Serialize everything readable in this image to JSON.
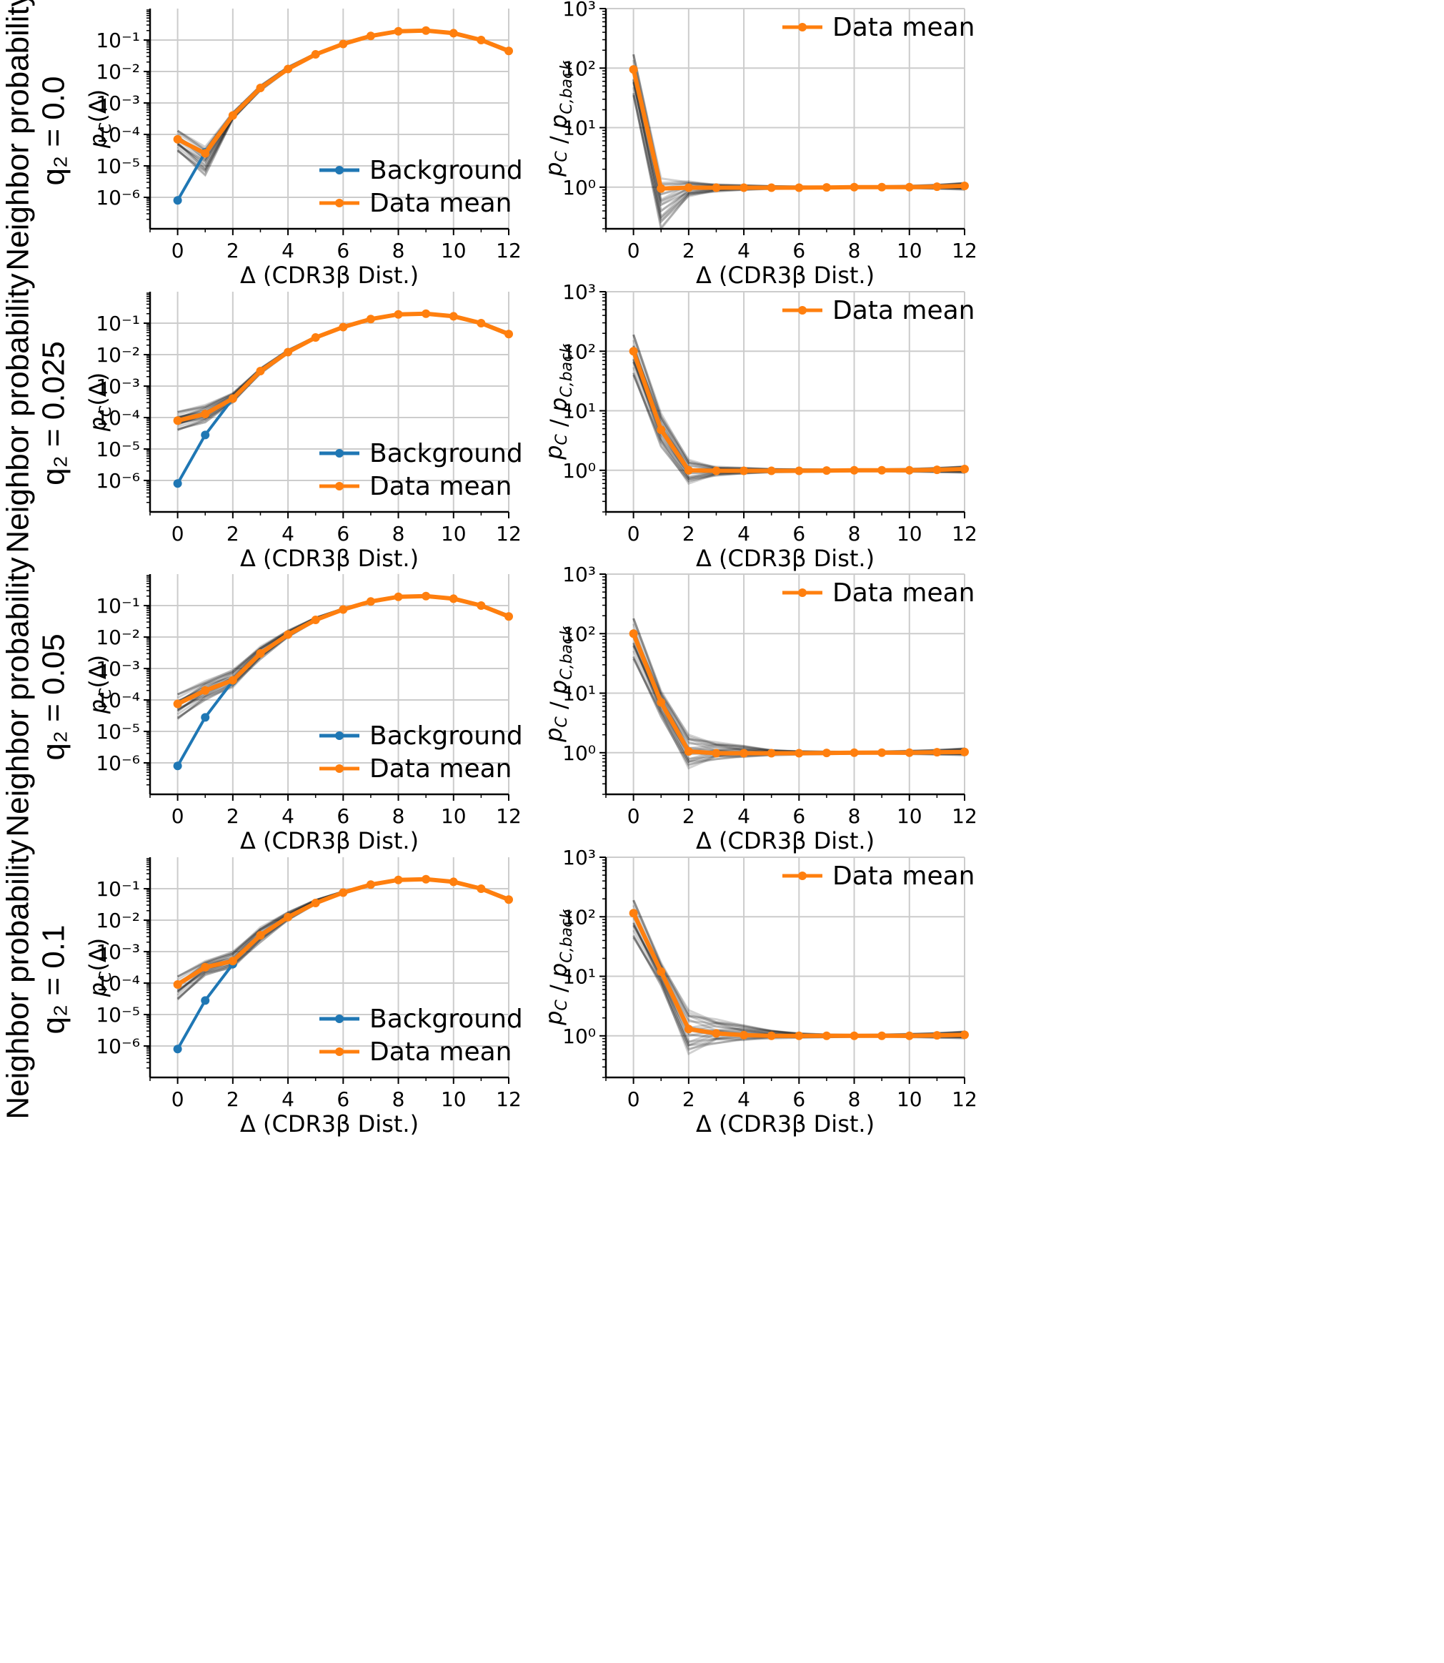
{
  "colors": {
    "background": "#1f77b4",
    "data_mean": "#ff7f0e",
    "samples": "#000000",
    "grid": "#cccccc"
  },
  "row_labels": [
    {
      "line1": "Neighbor probability",
      "line2": "q₂ = 0.0"
    },
    {
      "line1": "Neighbor probability",
      "line2": "q₂ = 0.025"
    },
    {
      "line1": "Neighbor probability",
      "line2": "q₂ = 0.05"
    },
    {
      "line1": "Neighbor probability",
      "line2": "q₂ = 0.1"
    }
  ],
  "chart_data": [
    {
      "panel": "row1-left",
      "type": "line",
      "yscale": "log",
      "xlabel": "Δ (CDR3β Dist.)",
      "ylabel": "pC(Δ)",
      "xlim": [
        -1,
        12
      ],
      "ylim": [
        1e-07,
        1
      ],
      "grid": true,
      "legend": "lower right",
      "xticks": [
        0,
        2,
        4,
        6,
        8,
        10,
        12
      ],
      "yticks": [
        {
          "v": 1e-06,
          "label": "10⁻⁶"
        },
        {
          "v": 1e-05,
          "label": "10⁻⁵"
        },
        {
          "v": 0.0001,
          "label": "10⁻⁴"
        },
        {
          "v": 0.001,
          "label": "10⁻³"
        },
        {
          "v": 0.01,
          "label": "10⁻²"
        },
        {
          "v": 0.1,
          "label": "10⁻¹"
        }
      ],
      "series": [
        {
          "name": "Background",
          "x": [
            0,
            1
          ],
          "values": [
            8e-07,
            2.7e-05
          ]
        },
        {
          "name": "Data mean",
          "x": [
            0,
            1,
            2,
            3,
            4,
            5,
            6,
            7,
            8,
            9,
            10,
            11,
            12
          ],
          "values": [
            7e-05,
            2.5e-05,
            0.0004,
            0.003,
            0.012,
            0.035,
            0.075,
            0.135,
            0.19,
            0.2,
            0.165,
            0.1,
            0.045
          ]
        }
      ],
      "band_low": [
        3e-05,
        5e-06,
        0.0003,
        0.0025,
        0.011,
        0.033,
        0.072,
        0.13,
        0.18,
        0.19,
        0.155,
        0.093,
        0.041
      ],
      "band_high": [
        0.00013,
        4e-05,
        0.0005,
        0.0036,
        0.014,
        0.038,
        0.079,
        0.14,
        0.2,
        0.21,
        0.175,
        0.108,
        0.05
      ]
    },
    {
      "panel": "row1-right",
      "type": "line",
      "yscale": "log",
      "xlabel": "Δ (CDR3β Dist.)",
      "ylabel": "pC / pC,back",
      "xlim": [
        -1,
        12
      ],
      "ylim": [
        0.2,
        1000
      ],
      "grid": true,
      "legend": "upper right",
      "xticks": [
        0,
        2,
        4,
        6,
        8,
        10,
        12
      ],
      "yticks": [
        {
          "v": 1,
          "label": "10⁰"
        },
        {
          "v": 10,
          "label": "10¹"
        },
        {
          "v": 100,
          "label": "10²"
        },
        {
          "v": 1000,
          "label": "10³"
        }
      ],
      "series": [
        {
          "name": "Data mean",
          "x": [
            0,
            1,
            2,
            3,
            4,
            5,
            6,
            7,
            8,
            9,
            10,
            11,
            12
          ],
          "values": [
            95,
            0.95,
            0.98,
            0.98,
            0.98,
            0.98,
            0.98,
            0.99,
            1.0,
            1.0,
            1.0,
            1.02,
            1.05
          ]
        }
      ],
      "band_low": [
        35,
        0.2,
        0.7,
        0.85,
        0.9,
        0.93,
        0.95,
        0.96,
        0.97,
        0.97,
        0.96,
        0.94,
        0.9
      ],
      "band_high": [
        170,
        1.4,
        1.25,
        1.12,
        1.08,
        1.05,
        1.03,
        1.02,
        1.03,
        1.04,
        1.06,
        1.1,
        1.2
      ]
    },
    {
      "panel": "row2-left",
      "type": "line",
      "yscale": "log",
      "xlabel": "Δ (CDR3β Dist.)",
      "ylabel": "pC(Δ)",
      "xlim": [
        -1,
        12
      ],
      "ylim": [
        1e-07,
        1
      ],
      "grid": true,
      "legend": "lower right",
      "xticks": [
        0,
        2,
        4,
        6,
        8,
        10,
        12
      ],
      "yticks": [
        {
          "v": 1e-06,
          "label": "10⁻⁶"
        },
        {
          "v": 1e-05,
          "label": "10⁻⁵"
        },
        {
          "v": 0.0001,
          "label": "10⁻⁴"
        },
        {
          "v": 0.001,
          "label": "10⁻³"
        },
        {
          "v": 0.01,
          "label": "10⁻²"
        },
        {
          "v": 0.1,
          "label": "10⁻¹"
        }
      ],
      "series": [
        {
          "name": "Background",
          "x": [
            0,
            1,
            2
          ],
          "values": [
            8e-07,
            2.8e-05,
            0.0004
          ]
        },
        {
          "name": "Data mean",
          "x": [
            0,
            1,
            2,
            3,
            4,
            5,
            6,
            7,
            8,
            9,
            10,
            11,
            12
          ],
          "values": [
            8e-05,
            0.00013,
            0.0004,
            0.003,
            0.012,
            0.035,
            0.075,
            0.135,
            0.19,
            0.2,
            0.165,
            0.1,
            0.045
          ]
        }
      ],
      "band_low": [
        4e-05,
        7e-05,
        0.0003,
        0.0025,
        0.011,
        0.033,
        0.072,
        0.13,
        0.18,
        0.19,
        0.155,
        0.093,
        0.041
      ],
      "band_high": [
        0.00015,
        0.00025,
        0.0006,
        0.0037,
        0.014,
        0.038,
        0.079,
        0.14,
        0.2,
        0.21,
        0.175,
        0.108,
        0.05
      ]
    },
    {
      "panel": "row2-right",
      "type": "line",
      "yscale": "log",
      "xlabel": "Δ (CDR3β Dist.)",
      "ylabel": "pC / pC,back",
      "xlim": [
        -1,
        12
      ],
      "ylim": [
        0.2,
        1000
      ],
      "grid": true,
      "legend": "upper right",
      "xticks": [
        0,
        2,
        4,
        6,
        8,
        10,
        12
      ],
      "yticks": [
        {
          "v": 1,
          "label": "10⁰"
        },
        {
          "v": 10,
          "label": "10¹"
        },
        {
          "v": 100,
          "label": "10²"
        },
        {
          "v": 1000,
          "label": "10³"
        }
      ],
      "series": [
        {
          "name": "Data mean",
          "x": [
            0,
            1,
            2,
            3,
            4,
            5,
            6,
            7,
            8,
            9,
            10,
            11,
            12
          ],
          "values": [
            100,
            4.8,
            1.0,
            0.98,
            0.98,
            0.98,
            0.98,
            0.99,
            1.0,
            1.0,
            1.0,
            1.02,
            1.05
          ]
        }
      ],
      "band_low": [
        40,
        2.5,
        0.6,
        0.82,
        0.88,
        0.92,
        0.94,
        0.95,
        0.96,
        0.96,
        0.95,
        0.93,
        0.9
      ],
      "band_high": [
        190,
        9,
        1.5,
        1.15,
        1.1,
        1.06,
        1.04,
        1.03,
        1.03,
        1.04,
        1.06,
        1.1,
        1.18
      ]
    },
    {
      "panel": "row3-left",
      "type": "line",
      "yscale": "log",
      "xlabel": "Δ (CDR3β Dist.)",
      "ylabel": "pC(Δ)",
      "xlim": [
        -1,
        12
      ],
      "ylim": [
        1e-07,
        1
      ],
      "grid": true,
      "legend": "lower right",
      "xticks": [
        0,
        2,
        4,
        6,
        8,
        10,
        12
      ],
      "yticks": [
        {
          "v": 1e-06,
          "label": "10⁻⁶"
        },
        {
          "v": 1e-05,
          "label": "10⁻⁵"
        },
        {
          "v": 0.0001,
          "label": "10⁻⁴"
        },
        {
          "v": 0.001,
          "label": "10⁻³"
        },
        {
          "v": 0.01,
          "label": "10⁻²"
        },
        {
          "v": 0.1,
          "label": "10⁻¹"
        }
      ],
      "series": [
        {
          "name": "Background",
          "x": [
            0,
            1,
            2
          ],
          "values": [
            8e-07,
            2.8e-05,
            0.0004
          ]
        },
        {
          "name": "Data mean",
          "x": [
            0,
            1,
            2,
            3,
            4,
            5,
            6,
            7,
            8,
            9,
            10,
            11,
            12
          ],
          "values": [
            7.5e-05,
            0.0002,
            0.00042,
            0.003,
            0.012,
            0.035,
            0.075,
            0.135,
            0.19,
            0.2,
            0.165,
            0.1,
            0.045
          ]
        }
      ],
      "band_low": [
        2.5e-05,
        0.0001,
        0.00025,
        0.002,
        0.01,
        0.032,
        0.072,
        0.13,
        0.18,
        0.19,
        0.155,
        0.093,
        0.041
      ],
      "band_high": [
        0.00015,
        0.0004,
        0.0009,
        0.005,
        0.016,
        0.042,
        0.081,
        0.14,
        0.2,
        0.21,
        0.175,
        0.108,
        0.05
      ]
    },
    {
      "panel": "row3-right",
      "type": "line",
      "yscale": "log",
      "xlabel": "Δ (CDR3β Dist.)",
      "ylabel": "pC / pC,back",
      "xlim": [
        -1,
        12
      ],
      "ylim": [
        0.2,
        1000
      ],
      "grid": true,
      "legend": "upper right",
      "xticks": [
        0,
        2,
        4,
        6,
        8,
        10,
        12
      ],
      "yticks": [
        {
          "v": 1,
          "label": "10⁰"
        },
        {
          "v": 10,
          "label": "10¹"
        },
        {
          "v": 100,
          "label": "10²"
        },
        {
          "v": 1000,
          "label": "10³"
        }
      ],
      "series": [
        {
          "name": "Data mean",
          "x": [
            0,
            1,
            2,
            3,
            4,
            5,
            6,
            7,
            8,
            9,
            10,
            11,
            12
          ],
          "values": [
            100,
            7,
            1.05,
            0.98,
            0.98,
            0.98,
            0.98,
            0.99,
            1.0,
            1.0,
            1.0,
            1.02,
            1.03
          ]
        }
      ],
      "band_low": [
        38,
        4,
        0.55,
        0.78,
        0.85,
        0.9,
        0.93,
        0.95,
        0.96,
        0.96,
        0.95,
        0.93,
        0.9
      ],
      "band_high": [
        180,
        11,
        2,
        1.5,
        1.3,
        1.12,
        1.06,
        1.04,
        1.04,
        1.05,
        1.08,
        1.12,
        1.2
      ]
    },
    {
      "panel": "row4-left",
      "type": "line",
      "yscale": "log",
      "xlabel": "Δ (CDR3β Dist.)",
      "ylabel": "pC(Δ)",
      "xlim": [
        -1,
        12
      ],
      "ylim": [
        1e-07,
        1
      ],
      "grid": true,
      "legend": "lower right",
      "xticks": [
        0,
        2,
        4,
        6,
        8,
        10,
        12
      ],
      "yticks": [
        {
          "v": 1e-06,
          "label": "10⁻⁶"
        },
        {
          "v": 1e-05,
          "label": "10⁻⁵"
        },
        {
          "v": 0.0001,
          "label": "10⁻⁴"
        },
        {
          "v": 0.001,
          "label": "10⁻³"
        },
        {
          "v": 0.01,
          "label": "10⁻²"
        },
        {
          "v": 0.1,
          "label": "10⁻¹"
        }
      ],
      "series": [
        {
          "name": "Background",
          "x": [
            0,
            1,
            2
          ],
          "values": [
            8e-07,
            2.8e-05,
            0.0004
          ]
        },
        {
          "name": "Data mean",
          "x": [
            0,
            1,
            2,
            3,
            4,
            5,
            6,
            7,
            8,
            9,
            10,
            11,
            12
          ],
          "values": [
            9e-05,
            0.00032,
            0.0005,
            0.0033,
            0.0125,
            0.035,
            0.075,
            0.135,
            0.19,
            0.2,
            0.165,
            0.1,
            0.045
          ]
        }
      ],
      "band_low": [
        3e-05,
        0.00018,
        0.0003,
        0.002,
        0.01,
        0.032,
        0.072,
        0.13,
        0.18,
        0.19,
        0.155,
        0.093,
        0.041
      ],
      "band_high": [
        0.00016,
        0.0005,
        0.001,
        0.006,
        0.018,
        0.045,
        0.082,
        0.14,
        0.2,
        0.21,
        0.175,
        0.108,
        0.05
      ]
    },
    {
      "panel": "row4-right",
      "type": "line",
      "yscale": "log",
      "xlabel": "Δ (CDR3β Dist.)",
      "ylabel": "pC / pC,back",
      "xlim": [
        -1,
        12
      ],
      "ylim": [
        0.2,
        1000
      ],
      "grid": true,
      "legend": "upper right",
      "xticks": [
        0,
        2,
        4,
        6,
        8,
        10,
        12
      ],
      "yticks": [
        {
          "v": 1,
          "label": "10⁰"
        },
        {
          "v": 10,
          "label": "10¹"
        },
        {
          "v": 100,
          "label": "10²"
        },
        {
          "v": 1000,
          "label": "10³"
        }
      ],
      "series": [
        {
          "name": "Data mean",
          "x": [
            0,
            1,
            2,
            3,
            4,
            5,
            6,
            7,
            8,
            9,
            10,
            11,
            12
          ],
          "values": [
            115,
            12,
            1.3,
            1.1,
            1.03,
            1.0,
            1.0,
            1.0,
            1.0,
            1.0,
            1.0,
            1.02,
            1.04
          ]
        }
      ],
      "band_low": [
        45,
        7,
        0.5,
        0.75,
        0.85,
        0.9,
        0.93,
        0.95,
        0.96,
        0.96,
        0.95,
        0.93,
        0.9
      ],
      "band_high": [
        190,
        17,
        2.7,
        1.9,
        1.5,
        1.25,
        1.1,
        1.05,
        1.04,
        1.05,
        1.08,
        1.12,
        1.2
      ]
    }
  ]
}
